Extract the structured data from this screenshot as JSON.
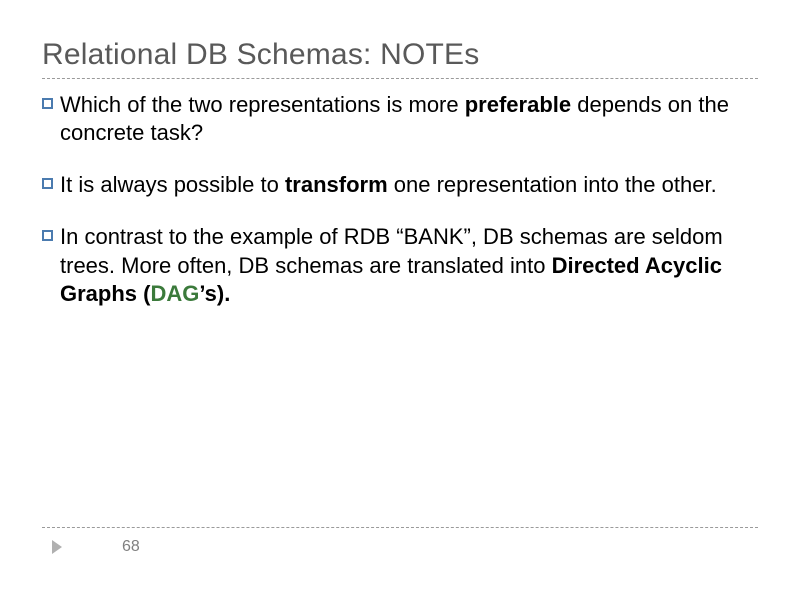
{
  "title": "Relational DB Schemas: NOTEs",
  "bullets": [
    {
      "segments": [
        {
          "text": "Which of the two representations is more ",
          "style": "normal"
        },
        {
          "text": "preferable",
          "style": "bold"
        },
        {
          "text": " depends on the concrete task?",
          "style": "normal"
        }
      ]
    },
    {
      "segments": [
        {
          "text": "It is always possible to ",
          "style": "normal"
        },
        {
          "text": "transform",
          "style": "bold"
        },
        {
          "text": " one representation into the other.",
          "style": "normal"
        }
      ]
    },
    {
      "segments": [
        {
          "text": "In contrast to the example of RDB “BANK”, DB schemas are seldom trees. More often, DB schemas are translated into ",
          "style": "normal"
        },
        {
          "text": "Directed Acyclic Graphs (",
          "style": "bold"
        },
        {
          "text": "DAG",
          "style": "green-bold"
        },
        {
          "text": "’s).",
          "style": "bold"
        }
      ]
    }
  ],
  "pageNumber": "68",
  "colors": {
    "title": "#595959",
    "bulletBorder": "#4b7baf",
    "dash": "#9a9a9a",
    "greenBold": "#3b7a3b",
    "footerArrow": "#b0b0b0",
    "pageNum": "#808080",
    "background": "#ffffff"
  },
  "typography": {
    "titleFontSize": 30,
    "bodyFontSize": 22,
    "pageNumFontSize": 16,
    "fontFamily": "Arial"
  }
}
